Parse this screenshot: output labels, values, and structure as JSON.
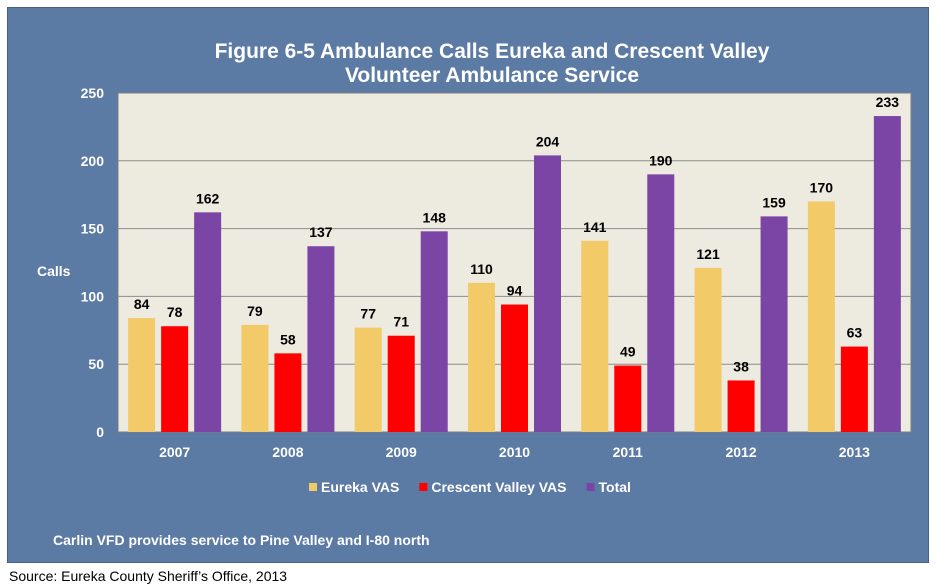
{
  "chart_data": {
    "type": "bar",
    "title": [
      "Figure 6-5 Ambulance Calls Eureka and Crescent Valley",
      "Volunteer Ambulance Service"
    ],
    "xlabel": "",
    "ylabel": "Calls",
    "ylim": [
      0,
      250
    ],
    "yticks": [
      0,
      50,
      100,
      150,
      200,
      250
    ],
    "categories": [
      "2007",
      "2008",
      "2009",
      "2010",
      "2011",
      "2012",
      "2013"
    ],
    "series": [
      {
        "name": "Eureka VAS",
        "color": "#f2ca67",
        "values": [
          84,
          79,
          77,
          110,
          141,
          121,
          170
        ]
      },
      {
        "name": "Crescent Valley VAS",
        "color": "#ff0000",
        "values": [
          78,
          58,
          71,
          94,
          49,
          38,
          63
        ]
      },
      {
        "name": "Total",
        "color": "#7b45a6",
        "values": [
          162,
          137,
          148,
          204,
          190,
          159,
          233
        ]
      }
    ],
    "grid": true,
    "legend": "bottom",
    "plot_background": "#edeae0",
    "annotation": "Carlin VFD provides service to Pine Valley and I-80 north"
  },
  "source_note": "Source: Eureka County Sheriff’s Office, 2013"
}
